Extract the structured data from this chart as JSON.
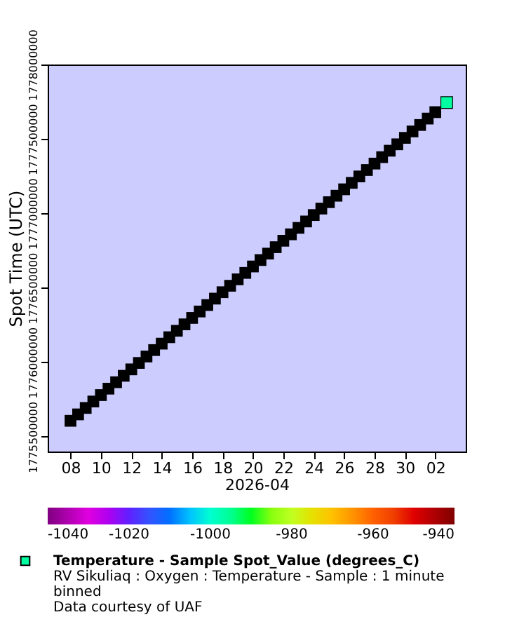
{
  "chart_data": {
    "type": "scatter",
    "xlabel": "2026-04",
    "ylabel": "Spot Time (UTC)",
    "xlim": [
      "2026-04-06T12:00",
      "2026-05-04T00:00"
    ],
    "xticks": [
      {
        "value": "2026-04-08",
        "label": "08"
      },
      {
        "value": "2026-04-10",
        "label": "10"
      },
      {
        "value": "2026-04-12",
        "label": "12"
      },
      {
        "value": "2026-04-14",
        "label": "14"
      },
      {
        "value": "2026-04-16",
        "label": "16"
      },
      {
        "value": "2026-04-18",
        "label": "18"
      },
      {
        "value": "2026-04-20",
        "label": "20"
      },
      {
        "value": "2026-04-22",
        "label": "22"
      },
      {
        "value": "2026-04-24",
        "label": "24"
      },
      {
        "value": "2026-04-26",
        "label": "26"
      },
      {
        "value": "2026-04-28",
        "label": "28"
      },
      {
        "value": "2026-04-30",
        "label": "30"
      },
      {
        "value": "2026-05-02",
        "label": "02"
      }
    ],
    "ylim": [
      1775400000,
      1778000000
    ],
    "yticks": [
      {
        "value": 1775500000,
        "label": "1775500000"
      },
      {
        "value": 1776000000,
        "label": "1776000000"
      },
      {
        "value": 1776500000,
        "label": "1776500000"
      },
      {
        "value": 1777000000,
        "label": "1777000000"
      },
      {
        "value": 1777500000,
        "label": "1777500000"
      },
      {
        "value": 1778000000,
        "label": "1778000000"
      }
    ],
    "clim": [
      -1040,
      -940
    ],
    "cticks": [
      {
        "value": -1040,
        "label": "-1040"
      },
      {
        "value": -1020,
        "label": "-1020"
      },
      {
        "value": -1000,
        "label": "-1000"
      },
      {
        "value": -980,
        "label": "-980"
      },
      {
        "value": -960,
        "label": "-960"
      },
      {
        "value": -940,
        "label": "-940"
      }
    ],
    "marker": "square",
    "grid": false,
    "legend": "bottom",
    "series": [
      {
        "color": "#000000",
        "x": [
          "2026-04-08T00:00",
          "2026-04-08T12:00",
          "2026-04-09T00:00",
          "2026-04-09T12:00",
          "2026-04-10T00:00",
          "2026-04-10T12:00",
          "2026-04-11T00:00",
          "2026-04-11T12:00",
          "2026-04-12T00:00",
          "2026-04-12T12:00",
          "2026-04-13T00:00",
          "2026-04-13T12:00",
          "2026-04-14T00:00",
          "2026-04-14T12:00",
          "2026-04-15T00:00",
          "2026-04-15T12:00",
          "2026-04-16T00:00",
          "2026-04-16T12:00",
          "2026-04-17T00:00",
          "2026-04-17T12:00",
          "2026-04-18T00:00",
          "2026-04-18T12:00",
          "2026-04-19T00:00",
          "2026-04-19T12:00",
          "2026-04-20T00:00",
          "2026-04-20T12:00",
          "2026-04-21T00:00",
          "2026-04-21T12:00",
          "2026-04-22T00:00",
          "2026-04-22T12:00",
          "2026-04-23T00:00",
          "2026-04-23T12:00",
          "2026-04-24T00:00",
          "2026-04-24T12:00",
          "2026-04-25T00:00",
          "2026-04-25T12:00",
          "2026-04-26T00:00",
          "2026-04-26T12:00",
          "2026-04-27T00:00",
          "2026-04-27T12:00",
          "2026-04-28T00:00",
          "2026-04-28T12:00",
          "2026-04-29T00:00",
          "2026-04-29T12:00",
          "2026-04-30T00:00",
          "2026-04-30T12:00",
          "2026-05-01T00:00",
          "2026-05-01T12:00",
          "2026-05-02T00:00"
        ],
        "values": [
          1775606400,
          1775649600,
          1775692800,
          1775736000,
          1775779200,
          1775822400,
          1775865600,
          1775908800,
          1775952000,
          1775995200,
          1776038400,
          1776081600,
          1776124800,
          1776168000,
          1776211200,
          1776254400,
          1776297600,
          1776340800,
          1776384000,
          1776427200,
          1776470400,
          1776513600,
          1776556800,
          1776600000,
          1776643200,
          1776686400,
          1776729600,
          1776772800,
          1776816000,
          1776859200,
          1776902400,
          1776945600,
          1776988800,
          1777032000,
          1777075200,
          1777118400,
          1777161600,
          1777204800,
          1777248000,
          1777291200,
          1777334400,
          1777377600,
          1777420800,
          1777464000,
          1777507200,
          1777550400,
          1777593600,
          1777636800,
          1777680000
        ]
      },
      {
        "name": "Temperature - Sample Spot_Value (degrees_C)",
        "x": [
          "2026-05-02T18:00"
        ],
        "values": [
          1777744800
        ],
        "cvalues": [
          -996
        ]
      }
    ],
    "annotations": [
      "RV Sikuliaq : Oxygen : Temperature - Sample : 1 minute binned",
      "Data courtesy of UAF"
    ]
  }
}
